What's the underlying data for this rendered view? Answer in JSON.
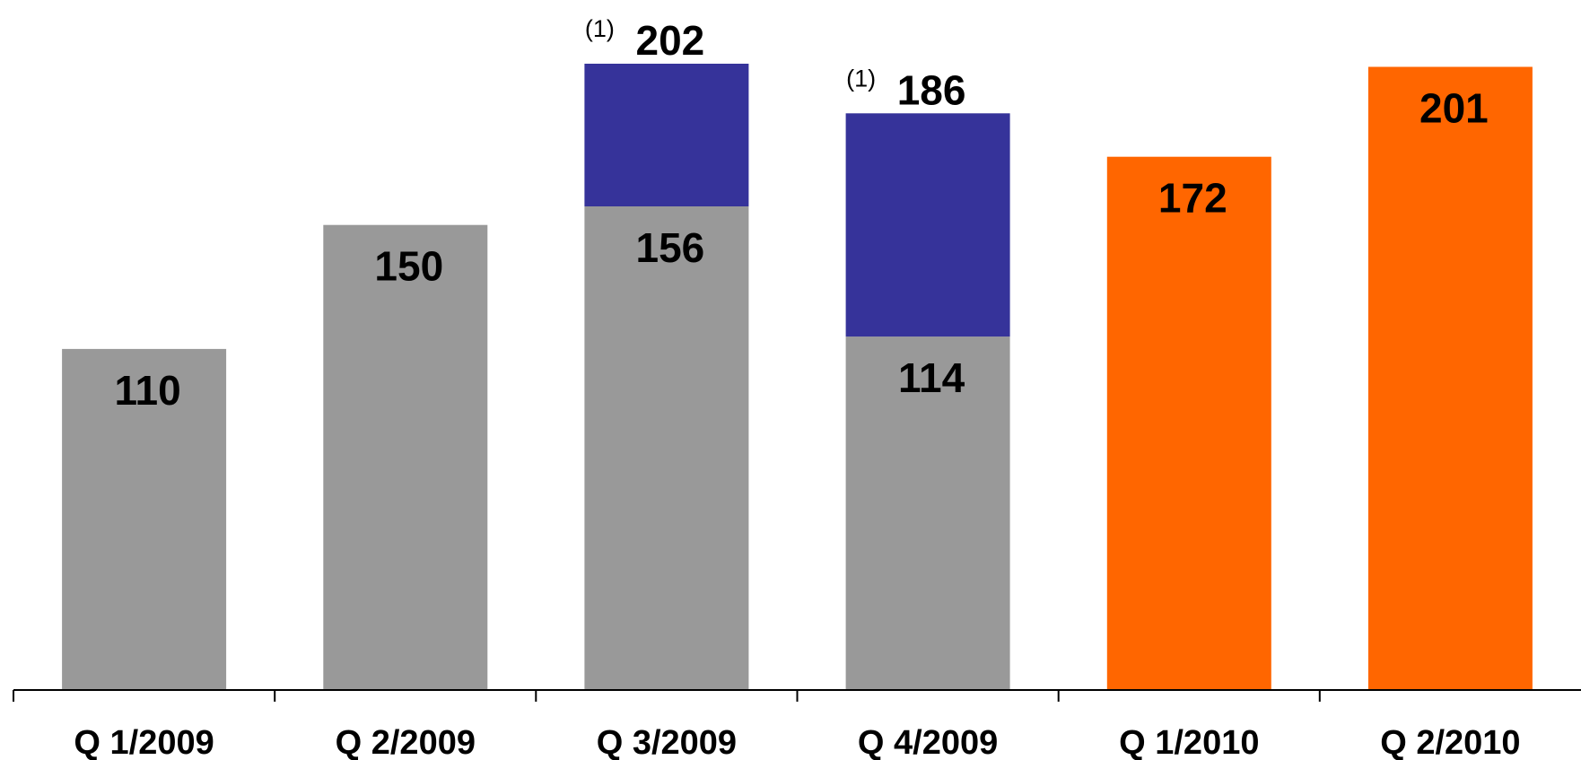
{
  "chart_data": {
    "type": "bar",
    "stacked": true,
    "categories": [
      "Q 1/2009",
      "Q 2/2009",
      "Q 3/2009",
      "Q 4/2009",
      "Q 1/2010",
      "Q 2/2010"
    ],
    "bars": [
      {
        "category": "Q 1/2009",
        "label": "110",
        "segments": [
          {
            "value": 110,
            "color": "#999999"
          }
        ]
      },
      {
        "category": "Q 2/2009",
        "label": "150",
        "segments": [
          {
            "value": 150,
            "color": "#999999"
          }
        ]
      },
      {
        "category": "Q 3/2009",
        "label": "156",
        "total_label": "202",
        "footnote": "(1)",
        "segments": [
          {
            "value": 156,
            "color": "#999999"
          },
          {
            "value": 46,
            "color": "#36339a"
          }
        ]
      },
      {
        "category": "Q 4/2009",
        "label": "114",
        "total_label": "186",
        "footnote": "(1)",
        "segments": [
          {
            "value": 114,
            "color": "#999999"
          },
          {
            "value": 72,
            "color": "#36339a"
          }
        ]
      },
      {
        "category": "Q 1/2010",
        "label": "172",
        "segments": [
          {
            "value": 172,
            "color": "#ff6600"
          }
        ]
      },
      {
        "category": "Q 2/2010",
        "label": "201",
        "segments": [
          {
            "value": 201,
            "color": "#ff6600"
          }
        ]
      }
    ],
    "title": "",
    "xlabel": "",
    "ylabel": "",
    "ylim": [
      0,
      202
    ],
    "grid": false,
    "legend": "none"
  }
}
